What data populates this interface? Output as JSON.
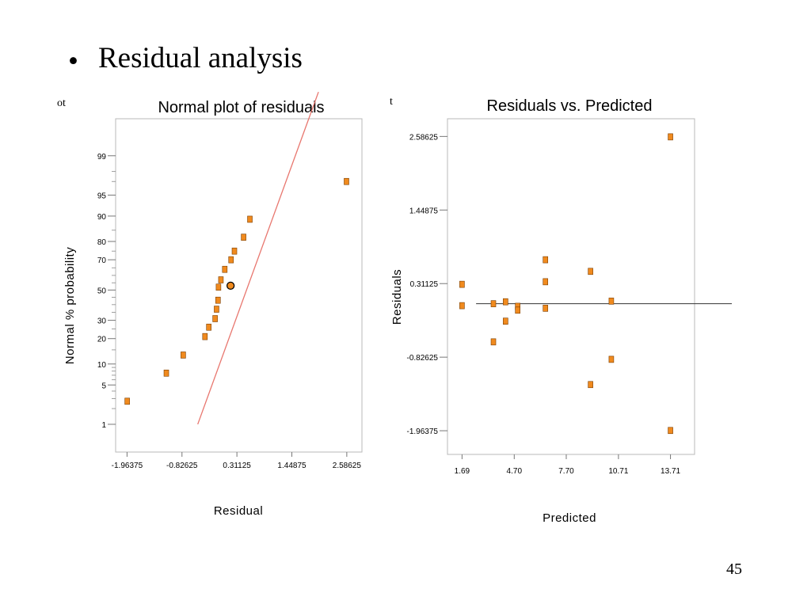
{
  "slide": {
    "bullet": "•",
    "title": "Residual analysis",
    "page_number": "45"
  },
  "chart_data": [
    {
      "type": "scatter",
      "title": "Normal plot of residuals",
      "title_fragment": "ot",
      "xlabel": "Residual",
      "ylabel": "Normal % probability",
      "x_ticks": [
        "-1.96375",
        "-0.82625",
        "0.31125",
        "1.44875",
        "2.58625"
      ],
      "x_tick_values": [
        -1.96375,
        -0.82625,
        0.31125,
        1.44875,
        2.58625
      ],
      "xlim": [
        -2.2,
        2.9
      ],
      "y_ticks": [
        "1",
        "5",
        "10",
        "20",
        "30",
        "50",
        "70",
        "80",
        "90",
        "95",
        "99"
      ],
      "y_tick_values": [
        1,
        5,
        10,
        20,
        30,
        50,
        70,
        80,
        90,
        95,
        99
      ],
      "ylim_percent": [
        0.25,
        99.85
      ],
      "y_scale": "normal-probability",
      "reference_line": {
        "color": "#e8776f",
        "x": [
          -0.5,
          2.0
        ],
        "y": [
          1.0,
          99.97
        ]
      },
      "highlighted_point": {
        "x": 0.18,
        "y": 53
      },
      "points": [
        {
          "x": -1.96,
          "y": 2.7
        },
        {
          "x": -1.15,
          "y": 7.5
        },
        {
          "x": -0.8,
          "y": 13
        },
        {
          "x": -0.35,
          "y": 21
        },
        {
          "x": -0.27,
          "y": 26
        },
        {
          "x": -0.14,
          "y": 31
        },
        {
          "x": -0.11,
          "y": 37
        },
        {
          "x": -0.08,
          "y": 43
        },
        {
          "x": -0.07,
          "y": 52
        },
        {
          "x": -0.02,
          "y": 57
        },
        {
          "x": 0.06,
          "y": 64
        },
        {
          "x": 0.19,
          "y": 70
        },
        {
          "x": 0.26,
          "y": 75
        },
        {
          "x": 0.45,
          "y": 82
        },
        {
          "x": 0.58,
          "y": 89
        },
        {
          "x": 2.58,
          "y": 97
        }
      ],
      "marker_color": "#f08a1e",
      "grid": false
    },
    {
      "type": "scatter",
      "title": "Residuals vs. Predicted",
      "title_fragment": "t",
      "xlabel": "Predicted",
      "ylabel": "Residuals",
      "x_ticks": [
        "1.69",
        "4.70",
        "7.70",
        "10.71",
        "13.71"
      ],
      "x_tick_values": [
        1.69,
        4.7,
        7.7,
        10.71,
        13.71
      ],
      "xlim": [
        0.85,
        15.1
      ],
      "y_ticks": [
        "-1.96375",
        "-0.82625",
        "0.31125",
        "1.44875",
        "2.58625"
      ],
      "y_tick_values": [
        -1.96375,
        -0.82625,
        0.31125,
        1.44875,
        2.58625
      ],
      "ylim": [
        -2.33,
        2.86
      ],
      "reference_line": {
        "y": 0,
        "color": "#333333"
      },
      "points": [
        {
          "x": 1.69,
          "y": 0.3
        },
        {
          "x": 1.69,
          "y": -0.03
        },
        {
          "x": 3.5,
          "y": 0.0
        },
        {
          "x": 3.5,
          "y": -0.59
        },
        {
          "x": 4.2,
          "y": 0.03
        },
        {
          "x": 4.2,
          "y": -0.27
        },
        {
          "x": 4.9,
          "y": -0.04
        },
        {
          "x": 4.9,
          "y": -0.1
        },
        {
          "x": 6.5,
          "y": 0.34
        },
        {
          "x": 6.5,
          "y": 0.68
        },
        {
          "x": 6.5,
          "y": -0.07
        },
        {
          "x": 9.1,
          "y": 0.5
        },
        {
          "x": 9.1,
          "y": -1.25
        },
        {
          "x": 10.3,
          "y": 0.04
        },
        {
          "x": 10.3,
          "y": -0.86
        },
        {
          "x": 13.71,
          "y": 2.58
        },
        {
          "x": 13.71,
          "y": -1.96
        }
      ],
      "marker_color": "#f08a1e",
      "grid": false
    }
  ]
}
